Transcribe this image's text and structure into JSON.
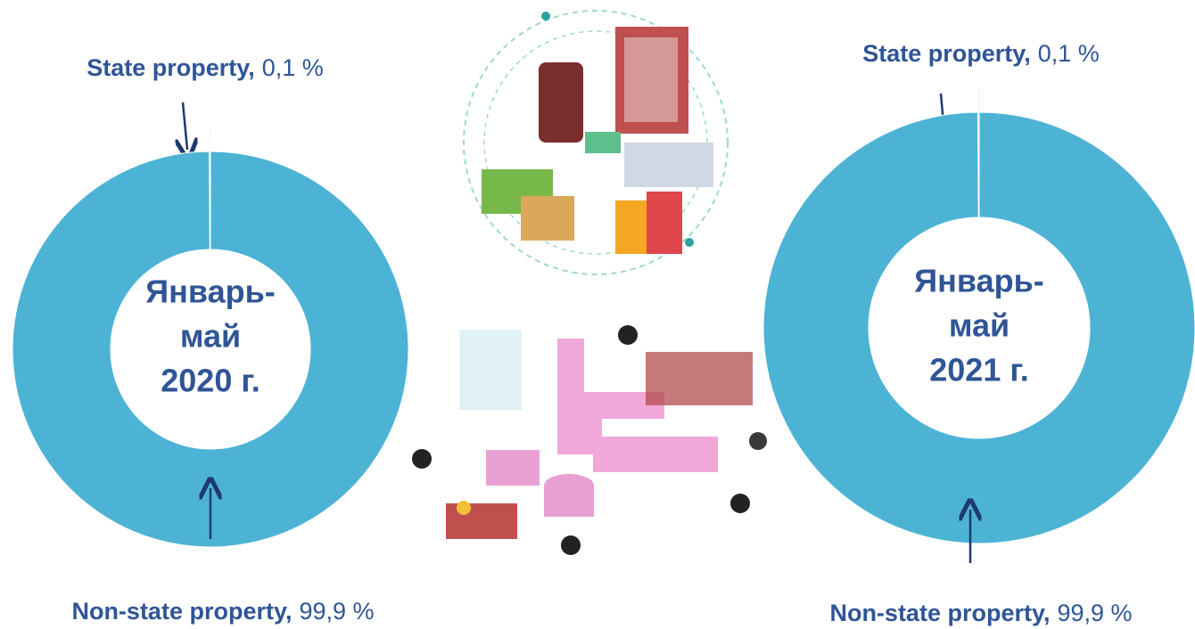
{
  "chart_data": [
    {
      "type": "donut",
      "center_label": [
        "Январь-",
        "май",
        "2020 г."
      ],
      "categories": [
        "State property,",
        "Non-state property,"
      ],
      "values": [
        0.1,
        99.9
      ],
      "value_labels": [
        "0,1 %",
        "99,9 %"
      ],
      "colors": [
        "#d9d9d9",
        "#4db3d5"
      ]
    },
    {
      "type": "donut",
      "center_label": [
        "Январь-",
        "май",
        "2021 г."
      ],
      "categories": [
        "State property,",
        "Non-state property,"
      ],
      "values": [
        0.1,
        99.9
      ],
      "value_labels": [
        "0,1 %",
        "99,9 %"
      ],
      "colors": [
        "#d9d9d9",
        "#4db3d5"
      ]
    }
  ]
}
